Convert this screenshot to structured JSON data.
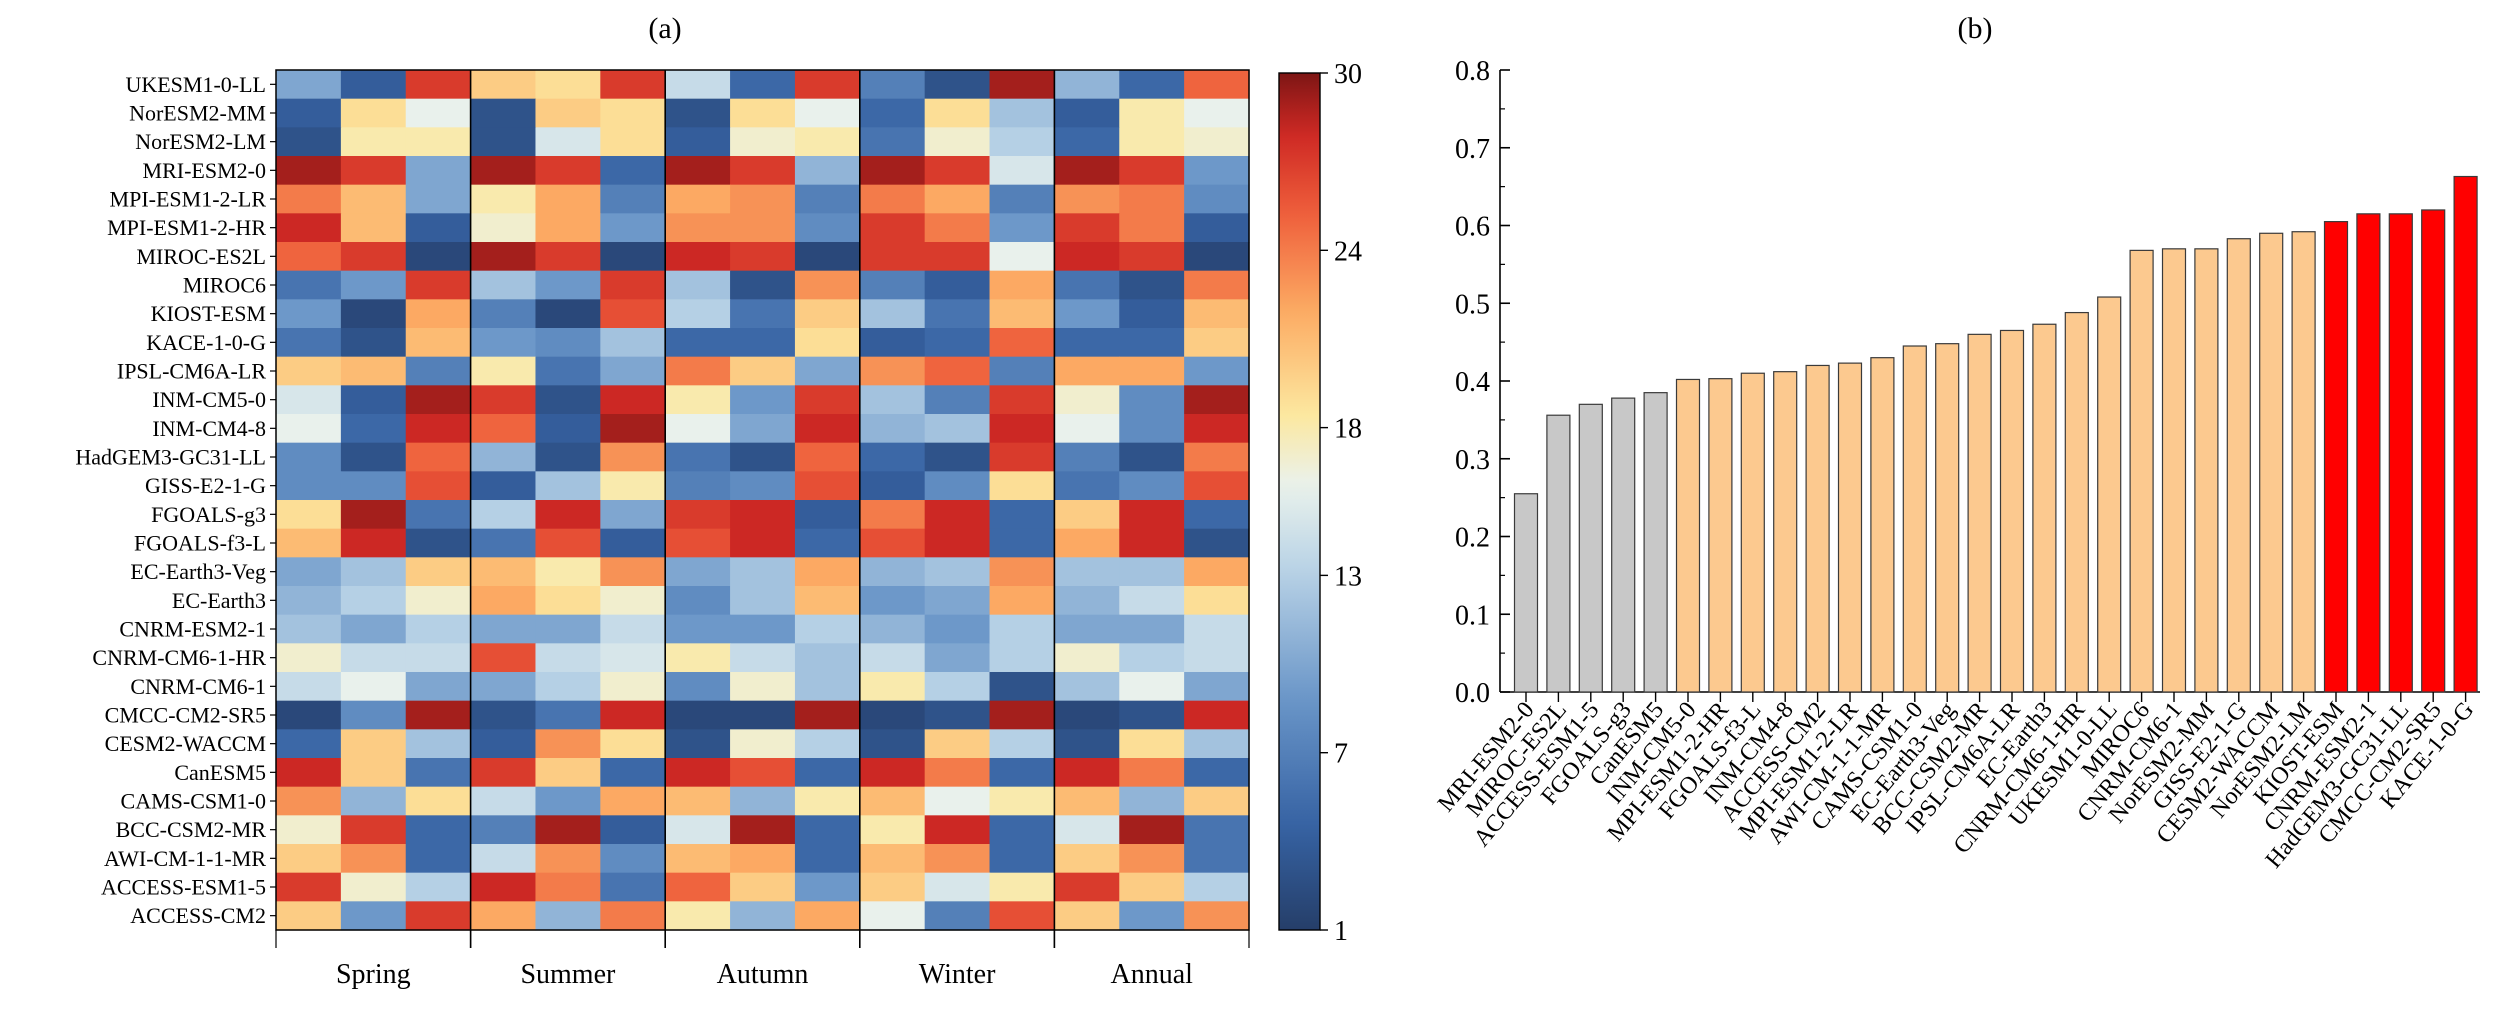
{
  "panels": {
    "a": {
      "label": "(a)"
    },
    "b": {
      "label": "(b)"
    }
  },
  "chart_data": [
    {
      "type": "heatmap",
      "title": "",
      "rows": [
        "UKESM1-0-LL",
        "NorESM2-MM",
        "NorESM2-LM",
        "MRI-ESM2-0",
        "MPI-ESM1-2-LR",
        "MPI-ESM1-2-HR",
        "MIROC-ES2L",
        "MIROC6",
        "KIOST-ESM",
        "KACE-1-0-G",
        "IPSL-CM6A-LR",
        "INM-CM5-0",
        "INM-CM4-8",
        "HadGEM3-GC31-LL",
        "GISS-E2-1-G",
        "FGOALS-g3",
        "FGOALS-f3-L",
        "EC-Earth3-Veg",
        "EC-Earth3",
        "CNRM-ESM2-1",
        "CNRM-CM6-1-HR",
        "CNRM-CM6-1",
        "CMCC-CM2-SR5",
        "CESM2-WACCM",
        "CanESM5",
        "CAMS-CSM1-0",
        "BCC-CSM2-MR",
        "AWI-CM-1-1-MR",
        "ACCESS-ESM1-5",
        "ACCESS-CM2"
      ],
      "groups": [
        "Spring",
        "Summer",
        "Autumn",
        "Winter",
        "Annual"
      ],
      "sub_columns_per_group": 3,
      "values": [
        [
          10,
          4,
          27,
          20,
          19,
          27,
          14,
          5,
          27,
          7,
          3,
          29,
          11,
          5,
          25
        ],
        [
          4,
          19,
          16,
          3,
          20,
          19,
          3,
          19,
          16,
          5,
          19,
          12,
          4,
          18,
          16
        ],
        [
          3,
          18,
          18,
          3,
          15,
          19,
          4,
          17,
          18,
          6,
          17,
          13,
          5,
          18,
          17
        ],
        [
          29,
          27,
          10,
          29,
          27,
          5,
          29,
          27,
          11,
          29,
          27,
          15,
          29,
          27,
          9
        ],
        [
          24,
          21,
          10,
          18,
          22,
          7,
          22,
          23,
          7,
          24,
          22,
          7,
          23,
          24,
          8
        ],
        [
          28,
          21,
          4,
          17,
          22,
          9,
          23,
          23,
          8,
          27,
          24,
          9,
          27,
          24,
          4
        ],
        [
          25,
          27,
          2,
          29,
          27,
          2,
          28,
          27,
          2,
          27,
          27,
          16,
          28,
          27,
          2
        ],
        [
          6,
          9,
          27,
          12,
          9,
          27,
          12,
          3,
          23,
          7,
          4,
          22,
          6,
          3,
          24
        ],
        [
          9,
          2,
          22,
          7,
          2,
          26,
          13,
          6,
          20,
          12,
          6,
          21,
          9,
          4,
          21
        ],
        [
          6,
          3,
          21,
          9,
          8,
          12,
          5,
          5,
          19,
          4,
          5,
          25,
          5,
          5,
          20
        ],
        [
          20,
          21,
          7,
          18,
          6,
          10,
          24,
          20,
          10,
          23,
          25,
          7,
          22,
          22,
          9
        ],
        [
          15,
          4,
          29,
          27,
          3,
          28,
          18,
          9,
          27,
          12,
          7,
          27,
          17,
          8,
          29
        ],
        [
          16,
          5,
          28,
          25,
          4,
          29,
          16,
          10,
          28,
          11,
          12,
          28,
          16,
          8,
          28
        ],
        [
          8,
          3,
          25,
          11,
          3,
          23,
          6,
          3,
          25,
          5,
          3,
          27,
          7,
          3,
          24
        ],
        [
          8,
          8,
          26,
          4,
          12,
          18,
          7,
          8,
          26,
          4,
          8,
          19,
          6,
          8,
          26
        ],
        [
          19,
          29,
          6,
          13,
          28,
          10,
          27,
          28,
          4,
          24,
          28,
          5,
          20,
          28,
          5
        ],
        [
          21,
          28,
          3,
          6,
          26,
          4,
          26,
          28,
          5,
          26,
          28,
          5,
          22,
          28,
          3
        ],
        [
          10,
          12,
          20,
          21,
          18,
          23,
          10,
          12,
          22,
          11,
          12,
          23,
          12,
          12,
          22
        ],
        [
          11,
          13,
          17,
          22,
          19,
          17,
          8,
          12,
          21,
          9,
          10,
          22,
          11,
          14,
          19
        ],
        [
          12,
          10,
          13,
          10,
          10,
          14,
          9,
          9,
          13,
          11,
          9,
          13,
          10,
          10,
          14
        ],
        [
          17,
          14,
          14,
          26,
          14,
          15,
          18,
          14,
          12,
          14,
          10,
          13,
          17,
          13,
          14
        ],
        [
          14,
          16,
          10,
          10,
          13,
          17,
          8,
          17,
          12,
          18,
          13,
          3,
          12,
          16,
          10
        ],
        [
          2,
          8,
          29,
          3,
          6,
          28,
          2,
          2,
          29,
          2,
          3,
          29,
          2,
          3,
          28
        ],
        [
          5,
          20,
          12,
          4,
          23,
          19,
          3,
          17,
          13,
          3,
          20,
          13,
          3,
          19,
          12
        ],
        [
          28,
          20,
          6,
          27,
          20,
          5,
          28,
          26,
          5,
          28,
          24,
          5,
          28,
          24,
          5
        ],
        [
          23,
          11,
          19,
          14,
          9,
          22,
          21,
          11,
          18,
          21,
          16,
          18,
          21,
          11,
          20
        ],
        [
          17,
          27,
          5,
          7,
          29,
          4,
          15,
          29,
          5,
          18,
          28,
          5,
          15,
          29,
          6
        ],
        [
          20,
          23,
          5,
          14,
          23,
          8,
          21,
          22,
          5,
          21,
          23,
          5,
          20,
          23,
          6
        ],
        [
          27,
          17,
          13,
          28,
          24,
          6,
          25,
          20,
          9,
          20,
          15,
          18,
          27,
          20,
          13
        ],
        [
          20,
          9,
          27,
          22,
          11,
          24,
          18,
          11,
          22,
          16,
          7,
          26,
          20,
          9,
          23
        ]
      ],
      "colorbar": {
        "min": 1,
        "max": 30,
        "ticks": [
          "30",
          "24",
          "18",
          "13",
          "7",
          "1"
        ],
        "tick_values": [
          30,
          24,
          18,
          13,
          7,
          1
        ]
      },
      "colors": {
        "low": "#253e69",
        "high": "#7d1614"
      }
    },
    {
      "type": "bar",
      "title": "",
      "categories": [
        "MRI-ESM2-0",
        "MIROC-ES2L",
        "ACCESS-ESM1-5",
        "FGOALS-g3",
        "CanESM5",
        "INM-CM5-0",
        "MPI-ESM1-2-HR",
        "FGOALS-f3-L",
        "INM-CM4-8",
        "ACCESS-CM2",
        "MPI-ESM1-2-LR",
        "AWI-CM-1-1-MR",
        "CAMS-CSM1-0",
        "EC-Earth3-Veg",
        "BCC-CSM2-MR",
        "IPSL-CM6A-LR",
        "EC-Earth3",
        "CNRM-CM6-1-HR",
        "UKESM1-0-LL",
        "MIROC6",
        "CNRM-CM6-1",
        "NorESM2-MM",
        "GISS-E2-1-G",
        "CESM2-WACCM",
        "NorESM2-LM",
        "KIOST-ESM",
        "CNRM-ESM2-1",
        "HadGEM3-GC31-LL",
        "CMCC-CM2-SR5",
        "KACE-1-0-G"
      ],
      "values": [
        0.255,
        0.356,
        0.37,
        0.378,
        0.385,
        0.402,
        0.403,
        0.41,
        0.412,
        0.42,
        0.423,
        0.43,
        0.445,
        0.448,
        0.46,
        0.465,
        0.473,
        0.488,
        0.508,
        0.568,
        0.57,
        0.57,
        0.583,
        0.59,
        0.592,
        0.605,
        0.615,
        0.615,
        0.62,
        0.663
      ],
      "bar_colors": [
        "#c8c8c8",
        "#c8c8c8",
        "#c8c8c8",
        "#c8c8c8",
        "#c8c8c8",
        "#fcc98f",
        "#fcc98f",
        "#fcc98f",
        "#fcc98f",
        "#fcc98f",
        "#fcc98f",
        "#fcc98f",
        "#fcc98f",
        "#fcc98f",
        "#fcc98f",
        "#fcc98f",
        "#fcc98f",
        "#fcc98f",
        "#fcc98f",
        "#fcc98f",
        "#fcc98f",
        "#fcc98f",
        "#fcc98f",
        "#fcc98f",
        "#fcc98f",
        "#ff0000",
        "#ff0000",
        "#ff0000",
        "#ff0000",
        "#ff0000"
      ],
      "ylim": [
        0,
        0.8
      ],
      "yticks": [
        "0.0",
        "0.1",
        "0.2",
        "0.3",
        "0.4",
        "0.5",
        "0.6",
        "0.7",
        "0.8"
      ],
      "ytick_values": [
        0,
        0.1,
        0.2,
        0.3,
        0.4,
        0.5,
        0.6,
        0.7,
        0.8
      ],
      "xlabel": "",
      "ylabel": ""
    }
  ]
}
